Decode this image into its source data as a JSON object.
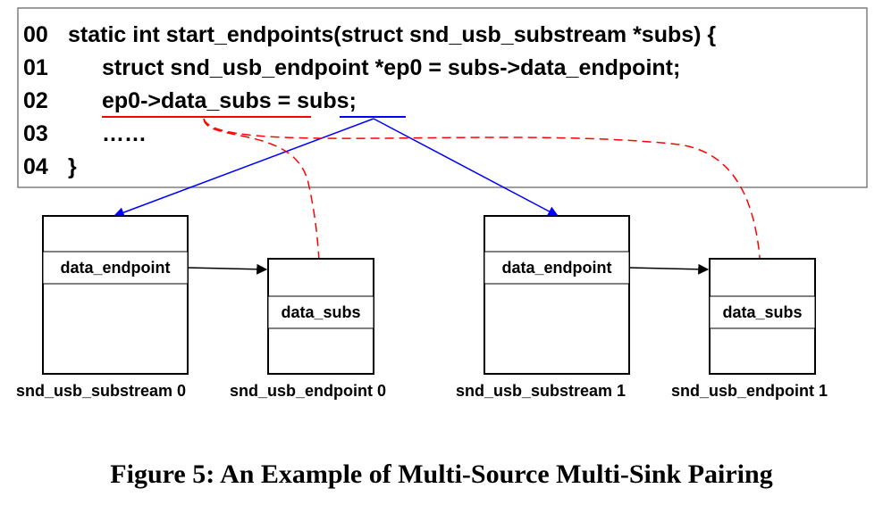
{
  "code": {
    "lines": [
      {
        "num": "00",
        "text": "static int start_endpoints(struct snd_usb_substream *subs) {"
      },
      {
        "num": "01",
        "text": "struct snd_usb_endpoint *ep0 = subs->data_endpoint;"
      },
      {
        "num": "02",
        "text": "ep0->data_subs = subs;"
      },
      {
        "num": "03",
        "text": "……"
      },
      {
        "num": "04",
        "text": "}"
      }
    ]
  },
  "nodes": {
    "substream0": {
      "field": "data_endpoint",
      "name": "snd_usb_substream 0"
    },
    "endpoint0": {
      "field": "data_subs",
      "name": "snd_usb_endpoint 0"
    },
    "substream1": {
      "field": "data_endpoint",
      "name": "snd_usb_substream 1"
    },
    "endpoint1": {
      "field": "data_subs",
      "name": "snd_usb_endpoint 1"
    }
  },
  "colors": {
    "source_line": "#0000ff",
    "sink_line": "#ff0000",
    "pointer_line": "#000000"
  },
  "caption": "Figure 5: An Example of Multi-Source Multi-Sink Pairing"
}
